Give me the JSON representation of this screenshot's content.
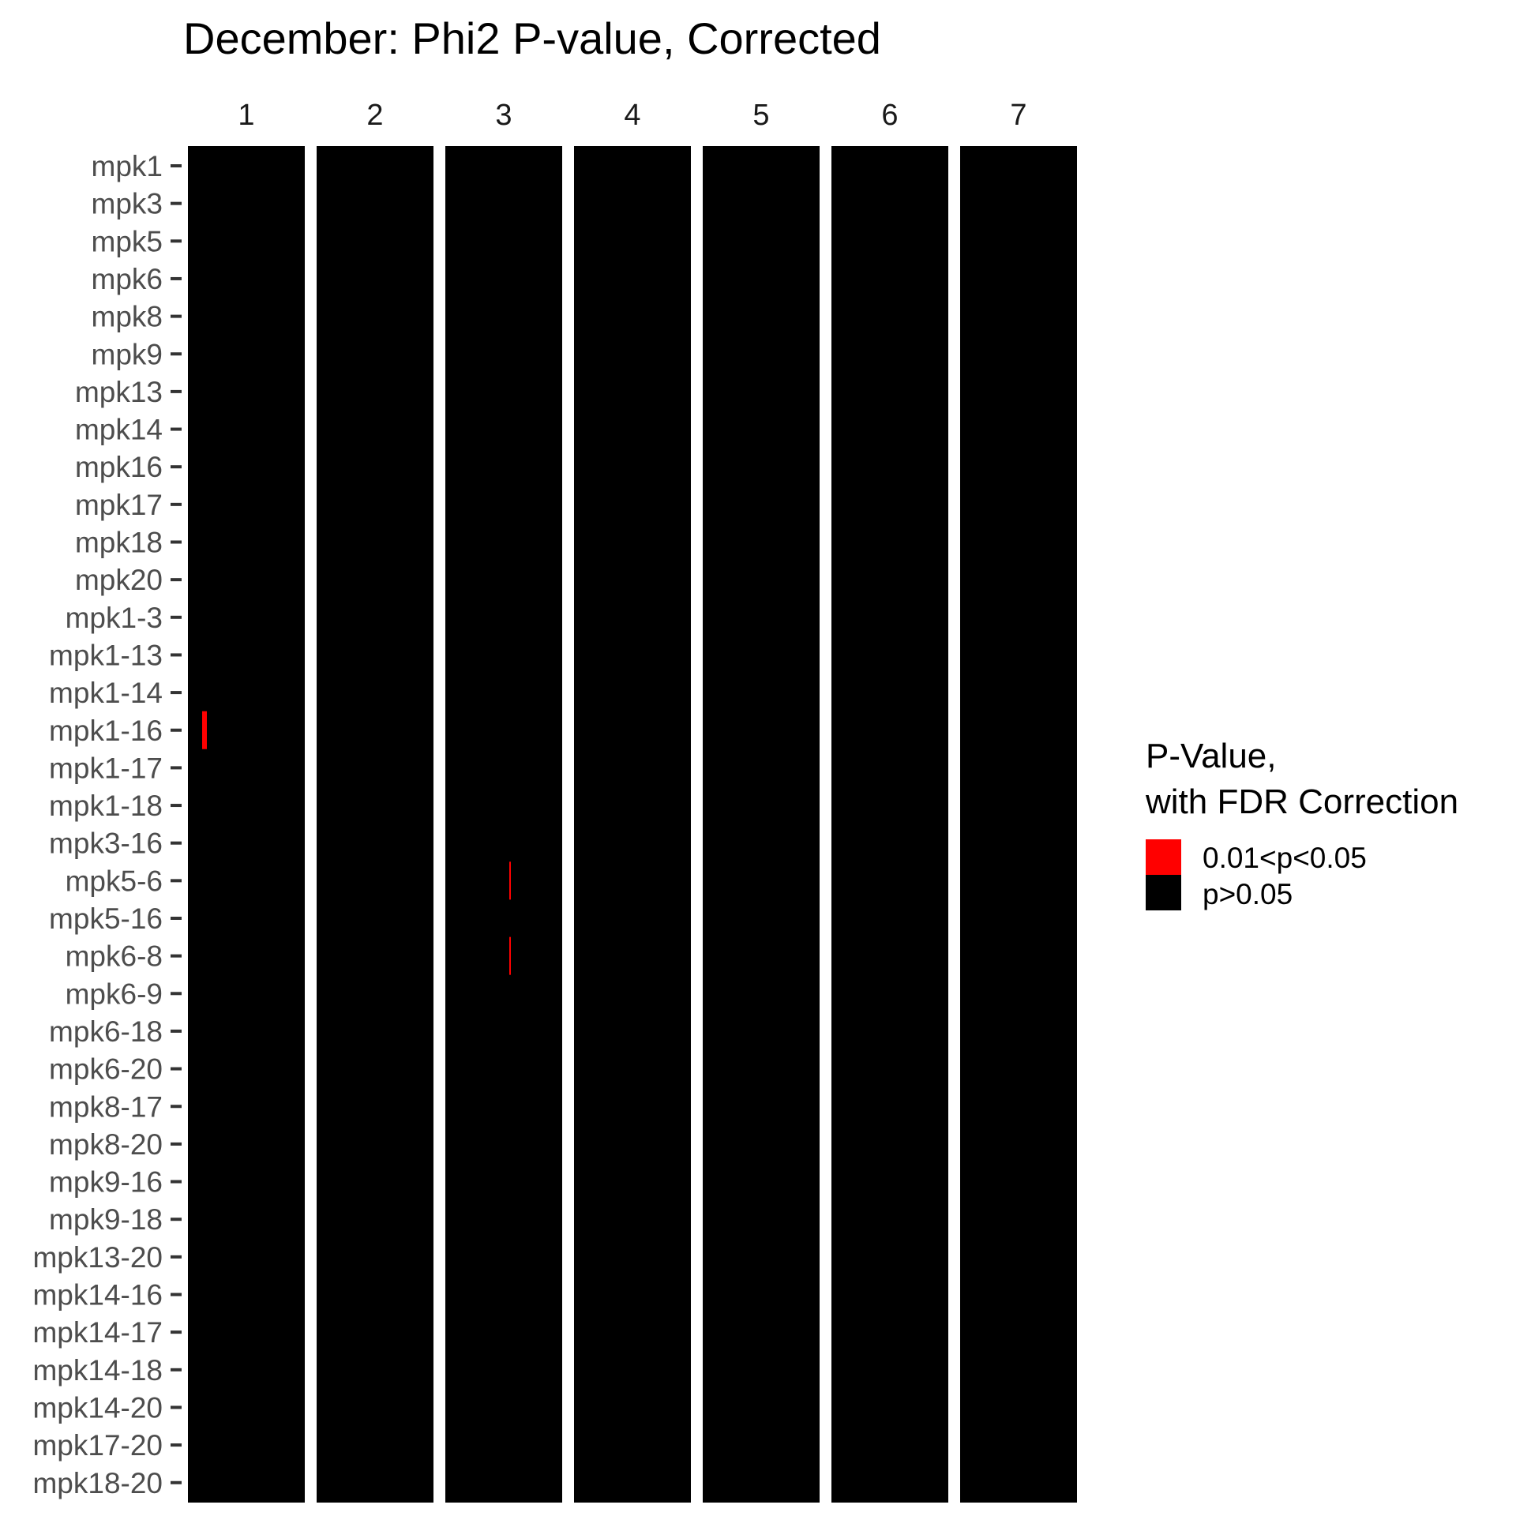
{
  "chart_data": {
    "type": "heatmap",
    "title": "December: Phi2 P-value, Corrected",
    "facets": [
      "1",
      "2",
      "3",
      "4",
      "5",
      "6",
      "7"
    ],
    "rows": [
      "mpk1",
      "mpk3",
      "mpk5",
      "mpk6",
      "mpk8",
      "mpk9",
      "mpk13",
      "mpk14",
      "mpk16",
      "mpk17",
      "mpk18",
      "mpk20",
      "mpk1-3",
      "mpk1-13",
      "mpk1-14",
      "mpk1-16",
      "mpk1-17",
      "mpk1-18",
      "mpk3-16",
      "mpk5-6",
      "mpk5-16",
      "mpk6-8",
      "mpk6-9",
      "mpk6-18",
      "mpk6-20",
      "mpk8-17",
      "mpk8-20",
      "mpk9-16",
      "mpk9-18",
      "mpk13-20",
      "mpk14-16",
      "mpk14-17",
      "mpk14-18",
      "mpk14-20",
      "mpk17-20",
      "mpk18-20"
    ],
    "default_category": "p>0.05",
    "significant_cells": [
      {
        "facet": "1",
        "row": "mpk1-16",
        "category": "0.01<p<0.05"
      },
      {
        "facet": "3",
        "row": "mpk5-6",
        "category": "0.01<p<0.05"
      },
      {
        "facet": "3",
        "row": "mpk6-8",
        "category": "0.01<p<0.05"
      }
    ],
    "legend": {
      "title_lines": [
        "P-Value,",
        "with FDR Correction"
      ],
      "entries": [
        {
          "label": "0.01<p<0.05",
          "color": "#ff0000"
        },
        {
          "label": "p>0.05",
          "color": "#000000"
        }
      ],
      "placement": "right"
    }
  }
}
